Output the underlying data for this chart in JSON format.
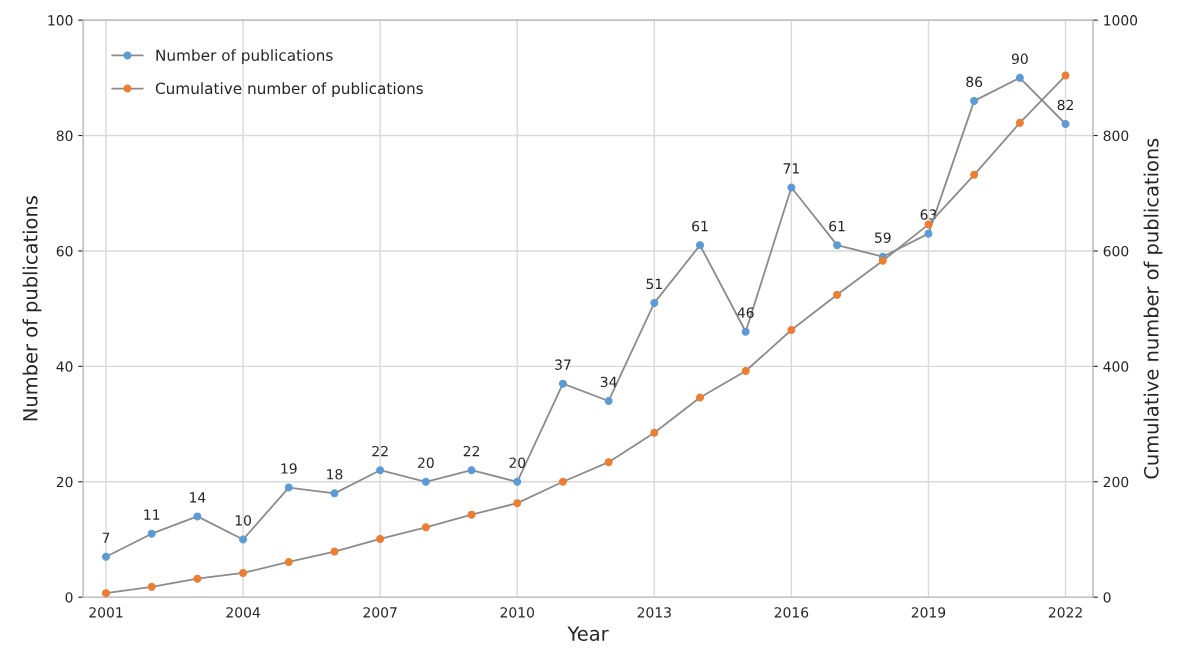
{
  "chart_data": {
    "type": "line",
    "xlabel": "Year",
    "ylabel": "Number of publications",
    "y2label": "Cumulative number of publications",
    "x": [
      2001,
      2002,
      2003,
      2004,
      2005,
      2006,
      2007,
      2008,
      2009,
      2010,
      2011,
      2012,
      2013,
      2014,
      2015,
      2016,
      2017,
      2018,
      2019,
      2020,
      2021,
      2022
    ],
    "series": [
      {
        "name": "Number of publications",
        "color": "#5b9bd5",
        "values": [
          7,
          11,
          14,
          10,
          19,
          18,
          22,
          20,
          22,
          20,
          37,
          34,
          51,
          61,
          46,
          71,
          61,
          59,
          63,
          86,
          90,
          82
        ],
        "value_labels": [
          "7",
          "11",
          "14",
          "10",
          "19",
          "18",
          "22",
          "20",
          "22",
          "20",
          "37",
          "34",
          "51",
          "61",
          "46",
          "71",
          "61",
          "59",
          "63",
          "86",
          "90",
          "82"
        ]
      },
      {
        "name": "Cumulative number of publications",
        "color": "#ed7d31",
        "axis": "y2",
        "values": [
          7,
          18,
          32,
          42,
          61,
          79,
          101,
          121,
          143,
          163,
          200,
          234,
          285,
          346,
          392,
          463,
          524,
          583,
          646,
          732,
          822,
          904
        ]
      }
    ],
    "xlim": [
      2000.5,
      2022.6
    ],
    "xticks": [
      2001,
      2004,
      2007,
      2010,
      2013,
      2016,
      2019,
      2022
    ],
    "ylim": [
      0,
      100
    ],
    "yticks": [
      0,
      20,
      40,
      60,
      80,
      100
    ],
    "y2lim": [
      0,
      1000
    ],
    "y2ticks": [
      0,
      200,
      400,
      600,
      800,
      1000
    ],
    "grid": true,
    "legend": "top left",
    "marker": "circle",
    "line_style": "solid"
  }
}
